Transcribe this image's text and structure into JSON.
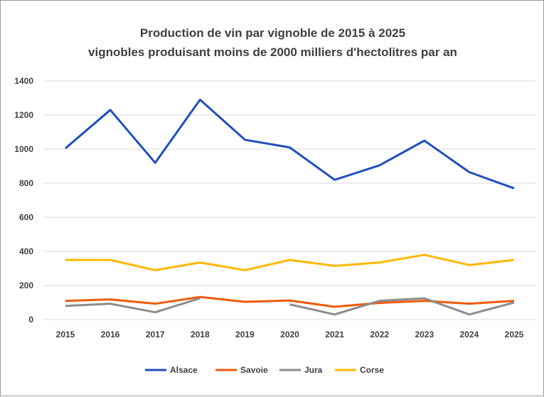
{
  "chart_data": {
    "type": "line",
    "title": "Production de vin par vignoble de 2015 à 2025",
    "subtitle": "vignobles produisant  moins de 2000 milliers d'hectolitres par an",
    "xlabel": "",
    "ylabel": "",
    "categories": [
      "2015",
      "2016",
      "2017",
      "2018",
      "2019",
      "2020",
      "2021",
      "2022",
      "2023",
      "2024",
      "2025"
    ],
    "ylim": [
      0,
      1400
    ],
    "yticks": [
      0,
      200,
      400,
      600,
      800,
      1000,
      1200,
      1400
    ],
    "grid": true,
    "legend": "bottom",
    "series": [
      {
        "name": "Alsace",
        "color": "#1f4fbf",
        "values": [
          1005,
          1230,
          920,
          1290,
          1055,
          1010,
          820,
          905,
          1050,
          865,
          770
        ]
      },
      {
        "name": "Savoie",
        "color": "#f05a0a",
        "values": [
          110,
          118,
          93,
          133,
          104,
          112,
          75,
          98,
          110,
          93,
          110
        ]
      },
      {
        "name": "Jura",
        "color": "#8c8c8c",
        "values": [
          80,
          93,
          43,
          125,
          null,
          89,
          30,
          110,
          125,
          30,
          100
        ]
      },
      {
        "name": "Corse",
        "color": "#ffb800",
        "values": [
          350,
          350,
          290,
          335,
          290,
          350,
          315,
          335,
          380,
          320,
          350
        ]
      }
    ]
  }
}
